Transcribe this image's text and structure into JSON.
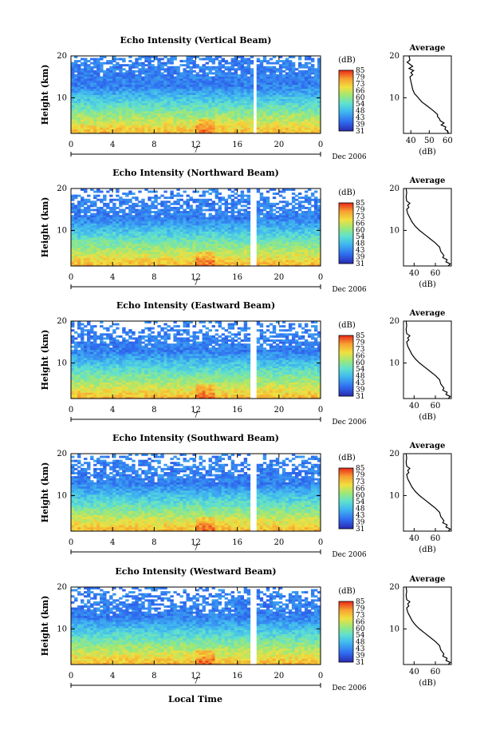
{
  "figure": {
    "xlabel": "Local Time",
    "date_label": "Dec 2006",
    "day_label": "7",
    "colorbar_unit": "(dB)",
    "colorbar_ticks": [
      "31",
      "39",
      "43",
      "48",
      "54",
      "60",
      "66",
      "73",
      "79",
      "85"
    ],
    "avg_title": "Average",
    "avg_xlabel": "(dB)"
  },
  "chart_data": [
    {
      "type": "heatmap",
      "title": "Echo Intensity (Vertical Beam)",
      "xlabel": "Local Time",
      "ylabel": "Height (km)",
      "x_ticks": [
        "0",
        "4",
        "8",
        "12",
        "16",
        "20",
        "0"
      ],
      "y_ticks": [
        "10",
        "20"
      ],
      "xlim": [
        0,
        24
      ],
      "ylim": [
        1.5,
        20
      ],
      "colorbar_unit": "(dB)",
      "colorbar_range": [
        31,
        90
      ],
      "data_gap_hours": [
        17.5,
        17.8
      ],
      "average_profile": {
        "title": "Average",
        "xlabel": "(dB)",
        "x_ticks": [
          "40",
          "50",
          "60"
        ],
        "y_ticks": [
          "10",
          "20"
        ],
        "xlim": [
          36,
          62
        ],
        "ylim": [
          1.5,
          20
        ],
        "height_km": [
          1.5,
          2.0,
          2.5,
          3.0,
          3.5,
          4.0,
          4.5,
          5.0,
          5.5,
          6.0,
          7.0,
          8.0,
          9.0,
          10.0,
          11.0,
          12.0,
          13.0,
          14.0,
          15.0,
          15.5,
          16.0,
          16.5,
          17.0,
          17.5,
          18.0,
          18.5,
          19.0,
          20.0
        ],
        "echo_db": [
          60.5,
          60,
          58.5,
          59,
          56.5,
          58,
          56,
          55.5,
          54.5,
          54.5,
          52,
          49,
          46,
          44,
          42,
          41,
          40.5,
          40,
          39.5,
          41,
          40,
          41.5,
          39,
          41,
          39.5,
          38,
          39.5,
          39
        ]
      }
    },
    {
      "type": "heatmap",
      "title": "Echo Intensity (Northward Beam)",
      "xlabel": "Local Time",
      "ylabel": "Height (km)",
      "x_ticks": [
        "0",
        "4",
        "8",
        "12",
        "16",
        "20",
        "0"
      ],
      "y_ticks": [
        "10",
        "20"
      ],
      "xlim": [
        0,
        24
      ],
      "ylim": [
        1.5,
        20
      ],
      "colorbar_unit": "(dB)",
      "colorbar_range": [
        31,
        90
      ],
      "data_gap_hours": [
        17.3,
        17.7
      ],
      "average_profile": {
        "title": "Average",
        "xlabel": "(dB)",
        "x_ticks": [
          "40",
          "60"
        ],
        "y_ticks": [
          "10",
          "20"
        ],
        "xlim": [
          30,
          75
        ],
        "ylim": [
          1.5,
          20
        ],
        "height_km": [
          1.5,
          2.0,
          2.5,
          3.0,
          3.5,
          4.0,
          5.0,
          6.0,
          7.0,
          8.0,
          9.0,
          10.0,
          11.0,
          12.0,
          13.0,
          14.0,
          15.0,
          15.5,
          16.0,
          16.5,
          17.0,
          18.0,
          19.0,
          20.0
        ],
        "echo_db": [
          72,
          74,
          70,
          71,
          67,
          68,
          65,
          64,
          60,
          55,
          50,
          45,
          41,
          38,
          36,
          34,
          33,
          35,
          34,
          36,
          33,
          32.5,
          33,
          32.5
        ]
      }
    },
    {
      "type": "heatmap",
      "title": "Echo Intensity (Eastward Beam)",
      "xlabel": "Local Time",
      "ylabel": "Height (km)",
      "x_ticks": [
        "0",
        "4",
        "8",
        "12",
        "16",
        "20",
        "0"
      ],
      "y_ticks": [
        "10",
        "20"
      ],
      "xlim": [
        0,
        24
      ],
      "ylim": [
        1.5,
        20
      ],
      "colorbar_unit": "(dB)",
      "colorbar_range": [
        31,
        90
      ],
      "data_gap_hours": [
        17.3,
        17.7
      ],
      "average_profile": {
        "title": "Average",
        "xlabel": "(dB)",
        "x_ticks": [
          "40",
          "60"
        ],
        "y_ticks": [
          "10",
          "20"
        ],
        "xlim": [
          30,
          75
        ],
        "ylim": [
          1.5,
          20
        ],
        "height_km": [
          1.5,
          2.0,
          2.5,
          3.0,
          3.5,
          4.0,
          5.0,
          6.0,
          7.0,
          8.0,
          9.0,
          10.0,
          11.0,
          12.0,
          13.0,
          14.0,
          15.0,
          15.5,
          16.0,
          16.5,
          17.0,
          18.0,
          19.0,
          20.0
        ],
        "echo_db": [
          72,
          74,
          70,
          71,
          67,
          68,
          65,
          64,
          60,
          55,
          50,
          45,
          41,
          38,
          36,
          34,
          33,
          35,
          34,
          36,
          33,
          32.5,
          33,
          32.5
        ]
      }
    },
    {
      "type": "heatmap",
      "title": "Echo Intensity (Southward Beam)",
      "xlabel": "Local Time",
      "ylabel": "Height (km)",
      "x_ticks": [
        "0",
        "4",
        "8",
        "12",
        "16",
        "20",
        "0"
      ],
      "y_ticks": [
        "10",
        "20"
      ],
      "xlim": [
        0,
        24
      ],
      "ylim": [
        1.5,
        20
      ],
      "colorbar_unit": "(dB)",
      "colorbar_range": [
        31,
        90
      ],
      "data_gap_hours": [
        17.3,
        17.7
      ],
      "average_profile": {
        "title": "Average",
        "xlabel": "(dB)",
        "x_ticks": [
          "40",
          "60"
        ],
        "y_ticks": [
          "10",
          "20"
        ],
        "xlim": [
          30,
          75
        ],
        "ylim": [
          1.5,
          20
        ],
        "height_km": [
          1.5,
          2.0,
          2.5,
          3.0,
          3.5,
          4.0,
          5.0,
          6.0,
          7.0,
          8.0,
          9.0,
          10.0,
          11.0,
          12.0,
          13.0,
          14.0,
          15.0,
          15.5,
          16.0,
          16.5,
          17.0,
          18.0,
          19.0,
          20.0
        ],
        "echo_db": [
          72,
          74,
          70,
          71,
          67,
          68,
          65,
          64,
          60,
          55,
          50,
          45,
          41,
          38,
          36,
          34,
          33,
          35,
          34,
          36,
          33,
          32.5,
          33,
          32.5
        ]
      }
    },
    {
      "type": "heatmap",
      "title": "Echo Intensity (Westward Beam)",
      "xlabel": "Local Time",
      "ylabel": "Height (km)",
      "x_ticks": [
        "0",
        "4",
        "8",
        "12",
        "16",
        "20",
        "0"
      ],
      "y_ticks": [
        "10",
        "20"
      ],
      "xlim": [
        0,
        24
      ],
      "ylim": [
        1.5,
        20
      ],
      "colorbar_unit": "(dB)",
      "colorbar_range": [
        31,
        90
      ],
      "data_gap_hours": [
        17.3,
        17.7
      ],
      "average_profile": {
        "title": "Average",
        "xlabel": "(dB)",
        "x_ticks": [
          "40",
          "60"
        ],
        "y_ticks": [
          "10",
          "20"
        ],
        "xlim": [
          30,
          75
        ],
        "ylim": [
          1.5,
          20
        ],
        "height_km": [
          1.5,
          2.0,
          2.5,
          3.0,
          3.5,
          4.0,
          5.0,
          6.0,
          7.0,
          8.0,
          9.0,
          10.0,
          11.0,
          12.0,
          13.0,
          14.0,
          15.0,
          15.5,
          16.0,
          16.5,
          17.0,
          18.0,
          19.0,
          20.0
        ],
        "echo_db": [
          72,
          74,
          70,
          71,
          67,
          68,
          65,
          64,
          60,
          55,
          50,
          45,
          41,
          38,
          36,
          34,
          33,
          35,
          34,
          36,
          33,
          32.5,
          33,
          32.5
        ]
      }
    }
  ]
}
